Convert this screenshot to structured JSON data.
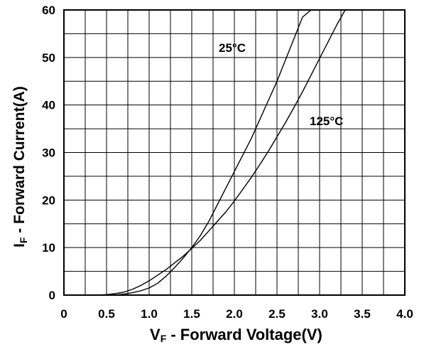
{
  "chart_data": {
    "type": "line",
    "title": "",
    "xlabel": {
      "prefix": "V",
      "sub": "F",
      "suffix": " - Forward Voltage(V)"
    },
    "ylabel": {
      "prefix": "I",
      "sub": "F",
      "suffix": " - Forward Current(A)"
    },
    "xlim": [
      0,
      4.0
    ],
    "ylim": [
      0,
      60
    ],
    "x_ticks": [
      "0",
      "0.5",
      "1.0",
      "1.5",
      "2.0",
      "2.5",
      "3.0",
      "3.5",
      "4.0"
    ],
    "y_ticks": [
      "0",
      "10",
      "20",
      "30",
      "40",
      "50",
      "60"
    ],
    "grid": true,
    "series": [
      {
        "name": "25°C",
        "x": [
          0.4,
          0.6,
          0.7,
          0.8,
          0.9,
          1.0,
          1.1,
          1.2,
          1.3,
          1.4,
          1.5,
          1.6,
          1.7,
          1.8,
          1.9,
          2.0,
          2.1,
          2.2,
          2.3,
          2.4,
          2.5,
          2.6,
          2.7,
          2.8,
          2.9
        ],
        "y": [
          0,
          0,
          0.2,
          0.5,
          0.9,
          1.5,
          2.5,
          4.0,
          5.8,
          7.8,
          10.0,
          12.5,
          15.5,
          19.0,
          22.5,
          26.0,
          29.5,
          33.0,
          37.0,
          41.0,
          45.0,
          49.5,
          54.0,
          58.5,
          60.0
        ]
      },
      {
        "name": "125°C",
        "x": [
          0.4,
          0.5,
          0.6,
          0.7,
          0.8,
          0.9,
          1.0,
          1.1,
          1.2,
          1.3,
          1.4,
          1.5,
          1.6,
          1.7,
          1.8,
          1.9,
          2.0,
          2.1,
          2.2,
          2.3,
          2.4,
          2.5,
          2.6,
          2.7,
          2.8,
          2.9,
          3.0,
          3.1,
          3.2,
          3.3
        ],
        "y": [
          0,
          0.1,
          0.3,
          0.6,
          1.2,
          2.0,
          3.0,
          4.2,
          5.4,
          6.8,
          8.2,
          9.8,
          11.5,
          13.5,
          15.5,
          17.5,
          19.8,
          22.3,
          24.8,
          27.5,
          30.3,
          33.3,
          36.3,
          39.5,
          42.8,
          46.3,
          49.8,
          53.3,
          56.8,
          60.0
        ]
      }
    ],
    "annotations": [
      "25°C",
      "125°C"
    ]
  }
}
